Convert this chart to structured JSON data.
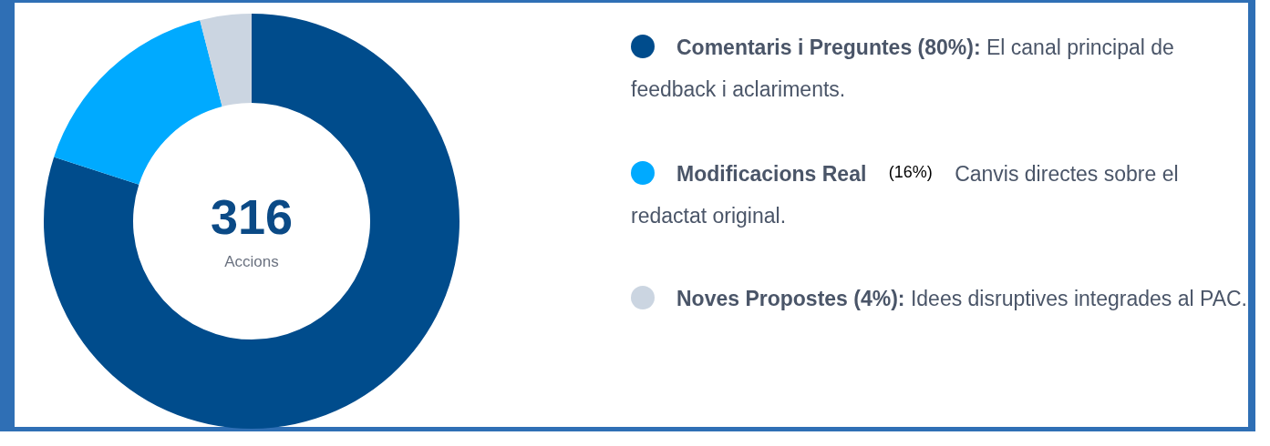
{
  "chart_data": {
    "type": "donut",
    "title": "316",
    "subtitle": "Accions",
    "categories": [
      "Comentaris i Preguntes",
      "Modificacions Real",
      "Noves Propostes"
    ],
    "values": [
      80,
      16,
      4
    ],
    "colors": [
      "#004c8c",
      "#00aaff",
      "#cbd5e1"
    ],
    "value_labels": [
      "(80%):",
      "(16%)",
      "(4%):"
    ],
    "annotations": [
      "El canal principal de feedback i aclariments.",
      "Canvis directes sobre el redactat original.",
      "Idees disruptives integrades al PAC."
    ],
    "legend": "right"
  }
}
